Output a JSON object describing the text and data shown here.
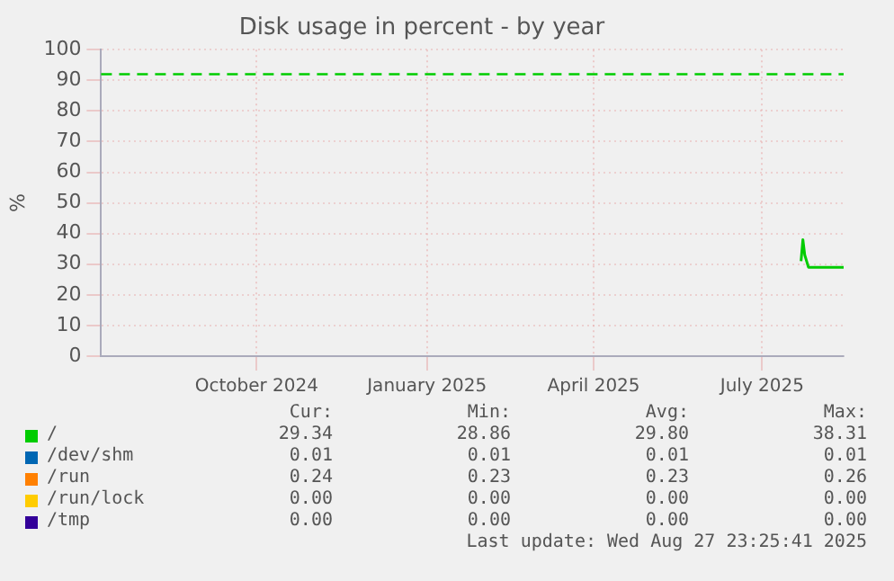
{
  "chart_data": {
    "type": "line",
    "title": "Disk usage in percent - by year",
    "ylabel": "%",
    "xlim": [
      "2024-07-23",
      "2025-08-28"
    ],
    "xticks": [
      {
        "value": "2024-10-15",
        "label": "October 2024"
      },
      {
        "value": "2025-01-15",
        "label": "January 2025"
      },
      {
        "value": "2025-04-15",
        "label": "April 2025"
      },
      {
        "value": "2025-07-15",
        "label": "July 2025"
      }
    ],
    "ylim": [
      0,
      100
    ],
    "yticks": [
      0,
      10,
      20,
      30,
      40,
      50,
      60,
      70,
      80,
      90,
      100
    ],
    "grid": true,
    "legend": "bottom",
    "marker": "none",
    "line_style": "solid",
    "ref_lines": [
      {
        "axis": "y",
        "value": 92,
        "color": "#00cc00",
        "line_style": "dashed"
      }
    ],
    "series": [
      {
        "name": "/",
        "color": "#00cc00",
        "x": [
          "2025-08-05",
          "2025-08-06",
          "2025-08-07",
          "2025-08-09",
          "2025-08-28"
        ],
        "values": [
          31,
          38,
          33,
          29,
          29
        ]
      },
      {
        "name": "/dev/shm",
        "color": "#0066b3"
      },
      {
        "name": "/run",
        "color": "#ff8000"
      },
      {
        "name": "/run/lock",
        "color": "#ffcc00"
      },
      {
        "name": "/tmp",
        "color": "#330099"
      }
    ],
    "annotations": [
      "Cur:",
      "Min:",
      "Avg:",
      "Max:",
      "29.34",
      "28.86",
      "29.80",
      "38.31",
      "0.01",
      "0.01",
      "0.01",
      "0.01",
      "0.24",
      "0.23",
      "0.23",
      "0.26",
      "0.00",
      "0.00",
      "0.00",
      "0.00",
      "0.00",
      "0.00",
      "0.00",
      "0.00",
      "Last update: Wed Aug 27 23:25:41 2025"
    ]
  }
}
